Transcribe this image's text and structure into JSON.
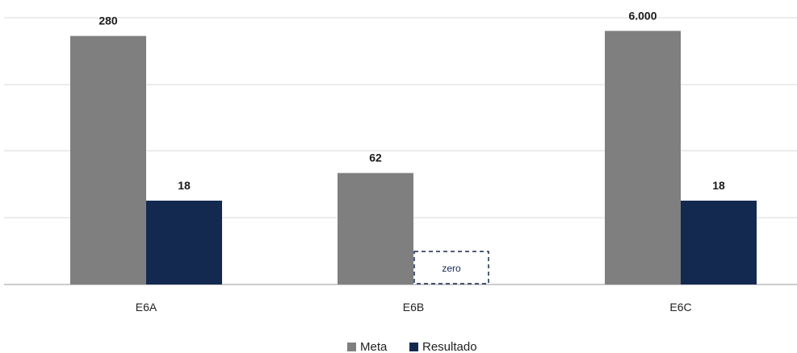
{
  "chart_data": {
    "type": "bar",
    "categories": [
      "E6A",
      "E6B",
      "E6C"
    ],
    "series": [
      {
        "name": "Meta",
        "values": [
          280,
          62,
          6000
        ],
        "labels": [
          "280",
          "62",
          "6.000"
        ],
        "color": "#7f7f7f"
      },
      {
        "name": "Resultado",
        "values": [
          18,
          0,
          18
        ],
        "labels": [
          "18",
          "",
          "18"
        ],
        "color": "#13294f"
      }
    ],
    "zero_marker_text": "zero",
    "scale": "broken/non-linear (axis values not shown)",
    "grid": true,
    "legend_position": "bottom"
  }
}
